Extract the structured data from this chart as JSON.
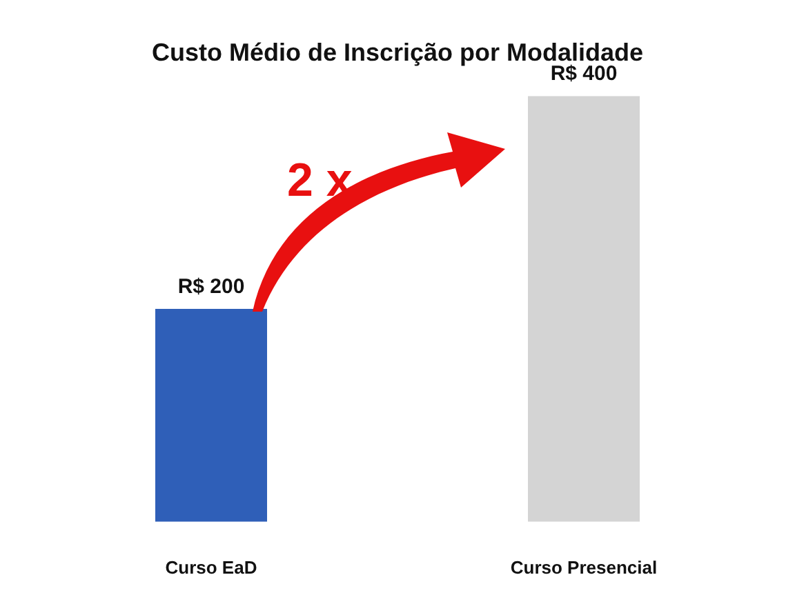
{
  "chart_data": {
    "type": "bar",
    "title": "Custo Médio de Inscrição por Modalidade",
    "categories": [
      "Curso EaD",
      "Curso Presencial"
    ],
    "values": [
      200,
      400
    ],
    "colors": [
      "#2f5fb8",
      "#d4d4d4"
    ],
    "value_labels": [
      "R$ 200",
      "R$ 400"
    ],
    "annotations": [
      "2 x"
    ],
    "grid": false
  }
}
